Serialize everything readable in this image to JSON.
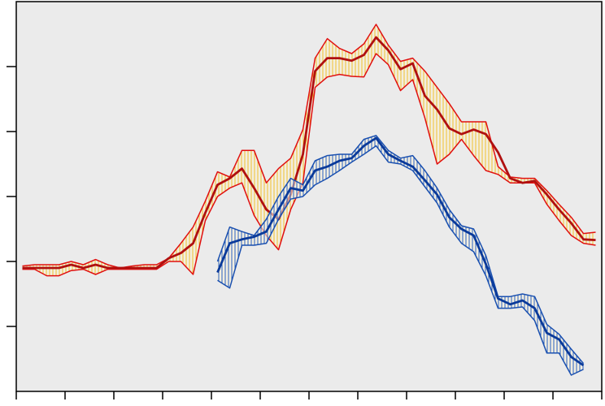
{
  "chart_data": {
    "type": "band-line",
    "x": [
      0.5,
      1.5,
      2.5,
      3.5,
      4.5,
      5.5,
      6.5,
      7.5,
      8.5,
      9.5,
      10.5,
      11.5,
      12.5,
      13.5,
      14.5,
      15.5,
      16.5,
      17.5,
      18.5,
      19.5,
      20.5,
      21.5,
      22.5,
      23.5,
      24.5,
      25.5,
      26.5,
      27.5,
      28.5,
      29.5,
      30.5,
      31.5,
      32.5,
      33.5,
      34.5,
      35.5,
      36.5,
      37.5,
      38.5,
      39.5,
      40.5,
      41.5,
      42.5,
      43.5,
      44.5,
      45.5,
      46.5,
      47.5
    ],
    "series": [
      {
        "color": "#b01010",
        "edge_color": "#e01010",
        "hatch_color": "#f0c030",
        "values": [
          1.9,
          1.9,
          1.9,
          1.9,
          1.95,
          1.9,
          1.95,
          1.9,
          1.9,
          1.9,
          1.9,
          1.9,
          2.05,
          2.13,
          2.28,
          2.75,
          3.18,
          3.28,
          3.43,
          3.13,
          2.8,
          2.65,
          3.03,
          3.65,
          4.93,
          5.13,
          5.13,
          5.09,
          5.18,
          5.45,
          5.25,
          4.96,
          5.05,
          4.55,
          4.34,
          4.05,
          3.96,
          4.03,
          3.96,
          3.68,
          3.28,
          3.21,
          3.24,
          3.03,
          2.8,
          2.59,
          2.34,
          2.33
        ],
        "upper": [
          1.93,
          1.95,
          1.95,
          1.95,
          2.0,
          1.95,
          2.03,
          1.95,
          1.9,
          1.93,
          1.95,
          1.95,
          2.05,
          2.28,
          2.53,
          2.93,
          3.38,
          3.3,
          3.71,
          3.71,
          3.21,
          3.43,
          3.59,
          4.03,
          5.13,
          5.43,
          5.28,
          5.2,
          5.35,
          5.65,
          5.33,
          5.08,
          5.13,
          4.93,
          4.68,
          4.43,
          4.15,
          4.15,
          4.15,
          3.46,
          3.3,
          3.28,
          3.28,
          3.09,
          2.88,
          2.68,
          2.43,
          2.45
        ],
        "lower": [
          1.88,
          1.88,
          1.78,
          1.78,
          1.86,
          1.88,
          1.8,
          1.88,
          1.88,
          1.88,
          1.88,
          1.88,
          2.0,
          2.0,
          1.8,
          2.63,
          3.0,
          3.13,
          3.21,
          2.71,
          2.4,
          2.18,
          2.8,
          3.21,
          4.68,
          4.84,
          4.88,
          4.85,
          4.84,
          5.2,
          5.03,
          4.63,
          4.8,
          4.21,
          3.5,
          3.65,
          3.88,
          3.63,
          3.4,
          3.34,
          3.21,
          3.21,
          3.21,
          2.88,
          2.63,
          2.4,
          2.28,
          2.25
        ]
      },
      {
        "color": "#0a3a9a",
        "edge_color": "#1a50b0",
        "hatch_color": "#2a60c0",
        "values": [
          null,
          null,
          null,
          null,
          null,
          null,
          null,
          null,
          null,
          null,
          null,
          null,
          null,
          null,
          null,
          null,
          1.83,
          2.28,
          2.34,
          2.38,
          2.46,
          2.8,
          3.13,
          3.09,
          3.4,
          3.46,
          3.55,
          3.59,
          3.78,
          3.9,
          3.65,
          3.55,
          3.46,
          3.25,
          3.03,
          2.68,
          2.5,
          2.4,
          1.96,
          1.43,
          1.34,
          1.4,
          1.28,
          0.9,
          0.8,
          0.53,
          0.4,
          null
        ],
        "upper": [
          null,
          null,
          null,
          null,
          null,
          null,
          null,
          null,
          null,
          null,
          null,
          null,
          null,
          null,
          null,
          null,
          2.0,
          2.53,
          2.46,
          2.4,
          2.65,
          3.0,
          3.28,
          3.18,
          3.55,
          3.63,
          3.65,
          3.65,
          3.88,
          3.94,
          3.71,
          3.59,
          3.63,
          3.4,
          3.13,
          2.8,
          2.55,
          2.5,
          2.09,
          1.46,
          1.46,
          1.5,
          1.46,
          1.03,
          0.88,
          0.65,
          0.43,
          null
        ],
        "lower": [
          null,
          null,
          null,
          null,
          null,
          null,
          null,
          null,
          null,
          null,
          null,
          null,
          null,
          null,
          null,
          null,
          1.71,
          1.59,
          2.25,
          2.25,
          2.28,
          2.65,
          2.96,
          3.0,
          3.18,
          3.28,
          3.4,
          3.53,
          3.65,
          3.78,
          3.53,
          3.5,
          3.4,
          3.15,
          2.9,
          2.53,
          2.28,
          2.15,
          1.78,
          1.28,
          1.28,
          1.3,
          1.09,
          0.59,
          0.59,
          0.25,
          0.34,
          null
        ]
      }
    ],
    "xlim": [
      0,
      48
    ],
    "xticks": [
      0,
      4,
      8,
      12,
      16,
      20,
      24,
      28,
      32,
      36,
      40,
      44,
      48
    ],
    "ylim": [
      0,
      6
    ],
    "yticks": [
      1,
      2,
      3,
      4,
      5
    ],
    "background": "#ebebeb"
  }
}
